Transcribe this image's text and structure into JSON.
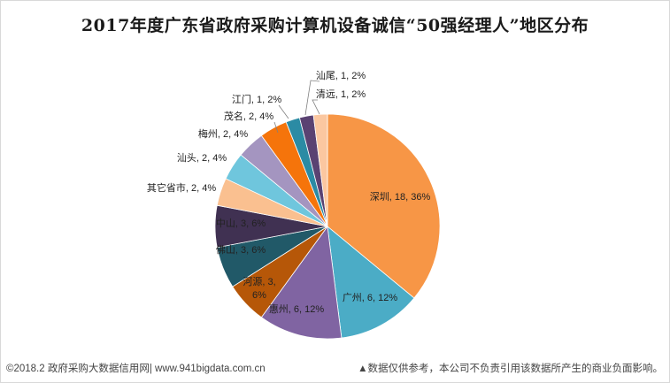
{
  "chart_data": {
    "type": "pie",
    "title": "2017年度广东省政府采购计算机设备诚信“50强经理人”地区分布",
    "slices": [
      {
        "name": "深圳",
        "value": 18,
        "percent": "36%",
        "color": "#f79646"
      },
      {
        "name": "广州",
        "value": 6,
        "percent": "12%",
        "color": "#4bacc6"
      },
      {
        "name": "惠州",
        "value": 6,
        "percent": "12%",
        "color": "#8064a2"
      },
      {
        "name": "河源",
        "value": 3,
        "percent": "6%",
        "color": "#b65708"
      },
      {
        "name": "佛山",
        "value": 3,
        "percent": "6%",
        "color": "#215968"
      },
      {
        "name": "中山",
        "value": 3,
        "percent": "6%",
        "color": "#403152"
      },
      {
        "name": "其它省市",
        "value": 2,
        "percent": "4%",
        "color": "#fac090"
      },
      {
        "name": "汕头",
        "value": 2,
        "percent": "4%",
        "color": "#6fc6dd"
      },
      {
        "name": "梅州",
        "value": 2,
        "percent": "4%",
        "color": "#a495c0"
      },
      {
        "name": "茂名",
        "value": 2,
        "percent": "4%",
        "color": "#f5740b"
      },
      {
        "name": "江门",
        "value": 1,
        "percent": "2%",
        "color": "#2b8ba4"
      },
      {
        "name": "汕尾",
        "value": 1,
        "percent": "2%",
        "color": "#5a4272"
      },
      {
        "name": "清远",
        "value": 1,
        "percent": "2%",
        "color": "#fbc7a0"
      }
    ]
  },
  "footer": {
    "left": "©2018.2 政府采购大数据信用网| www.941bigdata.com.cn",
    "right": "▲数据仅供参考，本公司不负责引用该数据所产生的商业负面影响。"
  }
}
